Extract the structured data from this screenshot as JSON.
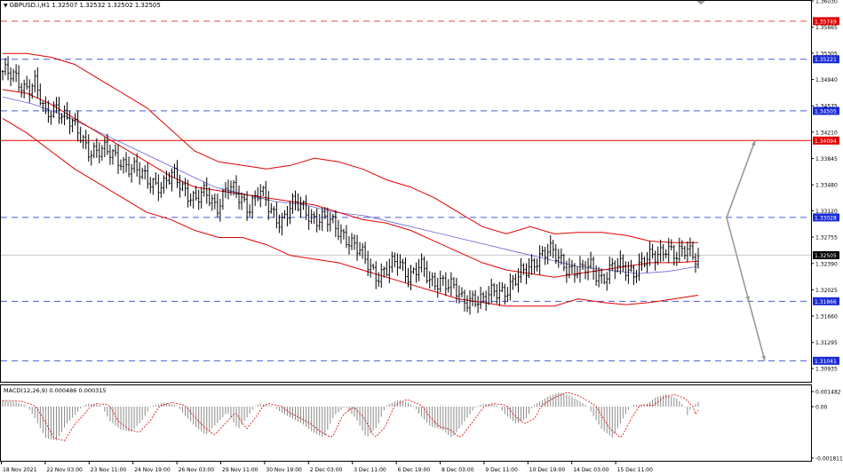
{
  "header": {
    "symbol_line": "GBPUSD.i,H1  1.32507 1.32532 1.32502 1.32505",
    "menu_glyph": "▼"
  },
  "macd_header": "MACD(12,26,9) 0.000486 0.000315",
  "colors": {
    "candles": "#000000",
    "bollinger": "#e00000",
    "ma": "#6464d8",
    "hline_blue": "#4a5cd6",
    "hline_red": "#e05050",
    "resistance_solid": "#e00000",
    "arrows": "#9a9a9a",
    "macd_hist": "#8a8a8a",
    "macd_signal": "#e00000",
    "label_blue_bg": "#1a2bd6",
    "label_red_bg": "#e00000",
    "label_current_bg": "#000000"
  },
  "chart_data": [
    {
      "type": "line",
      "subtype": "candlestick",
      "title": "GBPUSD.i,H1  1.32507 1.32532 1.32502 1.32505",
      "symbol": "GBPUSD.i",
      "timeframe": "H1",
      "ylim": [
        1.3075,
        1.3603
      ],
      "y_ticks": [
        "1.36030",
        "1.35665",
        "1.35305",
        "1.34940",
        "1.34575",
        "1.34210",
        "1.33845",
        "1.33480",
        "1.33120",
        "1.32755",
        "1.32390",
        "1.32025",
        "1.31660",
        "1.31295",
        "1.30935"
      ],
      "x_ticks": [
        "18 Nov 2021",
        "22 Nov 03:00",
        "23 Nov 11:00",
        "24 Nov 19:00",
        "26 Nov 03:00",
        "29 Nov 11:00",
        "30 Nov 19:00",
        "2 Dec 03:00",
        "3 Dec 11:00",
        "6 Dec 19:00",
        "8 Dec 03:00",
        "9 Dec 11:00",
        "10 Dec 19:00",
        "14 Dec 03:00",
        "15 Dec 11:00"
      ],
      "close_path": [
        1.3505,
        1.3495,
        1.3485,
        1.349,
        1.344,
        1.346,
        1.344,
        1.342,
        1.34,
        1.3395,
        1.339,
        1.3385,
        1.337,
        1.336,
        1.3355,
        1.3345,
        1.336,
        1.3345,
        1.3325,
        1.3335,
        1.332,
        1.3345,
        1.333,
        1.332,
        1.334,
        1.331,
        1.33,
        1.332,
        1.3315,
        1.3305,
        1.33,
        1.329,
        1.328,
        1.326,
        1.324,
        1.3225,
        1.323,
        1.324,
        1.3225,
        1.3235,
        1.321,
        1.322,
        1.3205,
        1.3185,
        1.3195,
        1.3185,
        1.32,
        1.3205,
        1.3215,
        1.323,
        1.325,
        1.3255,
        1.3245,
        1.3235,
        1.3225,
        1.3235,
        1.322,
        1.323,
        1.3235,
        1.323,
        1.324,
        1.325,
        1.3265,
        1.3245,
        1.326,
        1.325
      ],
      "bollinger_upper": [
        1.353,
        1.353,
        1.3525,
        1.3515,
        1.3495,
        1.3475,
        1.3455,
        1.3425,
        1.3395,
        1.338,
        1.3375,
        1.337,
        1.3375,
        1.3385,
        1.338,
        1.337,
        1.3355,
        1.3345,
        1.333,
        1.331,
        1.329,
        1.328,
        1.329,
        1.328,
        1.3282,
        1.3282,
        1.3278,
        1.327,
        1.3268,
        1.3268
      ],
      "bollinger_middle": [
        1.348,
        1.3475,
        1.346,
        1.344,
        1.342,
        1.34,
        1.338,
        1.336,
        1.3345,
        1.334,
        1.3335,
        1.333,
        1.3325,
        1.332,
        1.331,
        1.33,
        1.3295,
        1.3285,
        1.327,
        1.3255,
        1.324,
        1.323,
        1.3225,
        1.322,
        1.3225,
        1.323,
        1.3235,
        1.324,
        1.324,
        1.3242
      ],
      "bollinger_lower": [
        1.344,
        1.342,
        1.3395,
        1.337,
        1.335,
        1.333,
        1.331,
        1.33,
        1.3285,
        1.3275,
        1.3275,
        1.3265,
        1.325,
        1.3245,
        1.324,
        1.323,
        1.322,
        1.321,
        1.32,
        1.319,
        1.3185,
        1.318,
        1.318,
        1.318,
        1.319,
        1.3185,
        1.3182,
        1.3185,
        1.319,
        1.3195
      ],
      "moving_average": [
        1.347,
        1.346,
        1.3445,
        1.3425,
        1.3405,
        1.3385,
        1.3365,
        1.3345,
        1.3335,
        1.3325,
        1.332,
        1.331,
        1.3305,
        1.3295,
        1.3285,
        1.3275,
        1.3265,
        1.3255,
        1.3245,
        1.3235,
        1.323,
        1.3225,
        1.3228,
        1.3235
      ],
      "horizontal_lines": [
        {
          "price": "1.35749",
          "style": "dashed",
          "color": "red"
        },
        {
          "price": "1.35221",
          "style": "dashed",
          "color": "blue"
        },
        {
          "price": "1.34505",
          "style": "dashed",
          "color": "blue"
        },
        {
          "price": "1.34094",
          "style": "solid",
          "color": "red"
        },
        {
          "price": "1.33028",
          "style": "dashed",
          "color": "blue"
        },
        {
          "price": "1.31866",
          "style": "dashed",
          "color": "blue"
        },
        {
          "price": "1.31041",
          "style": "dashed",
          "color": "blue"
        }
      ],
      "current_price": "1.32505",
      "projection_arrows": [
        {
          "from": "1.33028",
          "to": "1.34094"
        },
        {
          "from": "1.33028",
          "to": "1.31866"
        },
        {
          "from": "1.31866",
          "to": "1.31041"
        }
      ]
    },
    {
      "type": "bar",
      "subtype": "macd_histogram",
      "title": "MACD(12,26,9) 0.000486 0.000315",
      "ylim": [
        -0.001811,
        0.001482
      ],
      "y_ticks": [
        "0.001482",
        "0.00",
        "-0.001811"
      ],
      "histogram_path": [
        0.0006,
        0.0005,
        0.0002,
        -0.0004,
        -0.0011,
        -0.0012,
        -0.0006,
        -0.0002,
        0.0003,
        0.0002,
        -0.0005,
        -0.0008,
        -0.0009,
        -0.0005,
        0.0001,
        0.0004,
        0.0002,
        -0.0003,
        -0.0007,
        -0.001,
        -0.0006,
        -0.0002,
        -0.0008,
        -0.0003,
        0.0003,
        0.0001,
        -0.0002,
        -0.0004,
        -0.0006,
        -0.0009,
        -0.0011,
        -0.0003,
        0.0,
        -0.0004,
        -0.0011,
        -0.0007,
        0.0002,
        0.0007,
        0.0003,
        -0.0003,
        -0.0007,
        -0.0008,
        -0.0011,
        -0.0006,
        -0.0001,
        0.0003,
        0.0002,
        -0.0003,
        -0.0006,
        -0.0004,
        0.0004,
        0.001,
        0.0014,
        0.0011,
        0.0005,
        -0.0002,
        -0.0008,
        -0.0011,
        -0.0004,
        0.0002,
        0.0001,
        0.0009,
        0.0012,
        0.0008,
        -0.0003,
        0.0005
      ]
    }
  ],
  "price_axis": {
    "ticks": [
      "1.36030",
      "1.35665",
      "1.35305",
      "1.34940",
      "1.34575",
      "1.34210",
      "1.33845",
      "1.33480",
      "1.33120",
      "1.32755",
      "1.32390",
      "1.32025",
      "1.31660",
      "1.31295",
      "1.30935"
    ],
    "labels_blue": [
      "1.35221",
      "1.34505",
      "1.33028",
      "1.31866",
      "1.31041"
    ],
    "labels_red": [
      "1.35749",
      "1.34094"
    ],
    "label_current": "1.32505"
  },
  "macd_axis": {
    "ticks": [
      "0.001482",
      "0.00",
      "-0.001811"
    ]
  },
  "time_axis": {
    "labels": [
      "18 Nov 2021",
      "22 Nov 03:00",
      "23 Nov 11:00",
      "24 Nov 19:00",
      "26 Nov 03:00",
      "29 Nov 11:00",
      "30 Nov 19:00",
      "2 Dec 03:00",
      "3 Dec 11:00",
      "6 Dec 19:00",
      "8 Dec 03:00",
      "9 Dec 11:00",
      "10 Dec 19:00",
      "14 Dec 03:00",
      "15 Dec 11:00"
    ]
  }
}
